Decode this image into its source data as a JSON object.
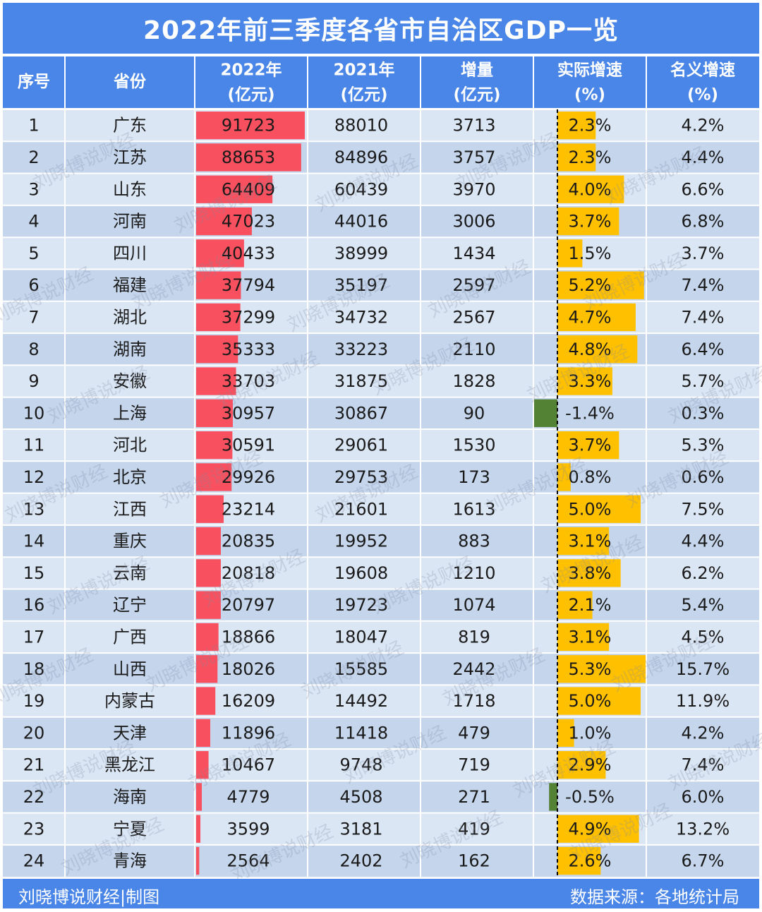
{
  "title": "2022年前三季度各省市自治区GDP一览",
  "footer": {
    "left": "刘晓博说财经|制图",
    "right": "数据来源：各地统计局"
  },
  "watermark": "刘晓博说财经",
  "colors": {
    "header_bg": "#4a86e8",
    "row_even": "#dbe6f4",
    "row_odd": "#c4d5ec",
    "gdp_bar": "#f8505e",
    "growth_pos_bar": "#ffc000",
    "growth_neg_bar": "#548235"
  },
  "chart_data": {
    "type": "table",
    "columns": [
      {
        "key": "rank",
        "label": "序号"
      },
      {
        "key": "province",
        "label": "省份"
      },
      {
        "key": "gdp_2022",
        "label": "2022年",
        "unit": "(亿元)"
      },
      {
        "key": "gdp_2021",
        "label": "2021年",
        "unit": "(亿元)"
      },
      {
        "key": "increase",
        "label": "增量",
        "unit": "(亿元)"
      },
      {
        "key": "real_growth",
        "label": "实际增速",
        "unit": "(%)"
      },
      {
        "key": "nominal_growth",
        "label": "名义增速",
        "unit": "(%)"
      }
    ],
    "rows": [
      {
        "rank": "1",
        "province": "广东",
        "gdp_2022": 91723,
        "gdp_2021": 88010,
        "increase": 3713,
        "real_growth": 2.3,
        "real_growth_label": "2.3%",
        "nominal_growth": "4.2%"
      },
      {
        "rank": "2",
        "province": "江苏",
        "gdp_2022": 88653,
        "gdp_2021": 84896,
        "increase": 3757,
        "real_growth": 2.3,
        "real_growth_label": "2.3%",
        "nominal_growth": "4.4%"
      },
      {
        "rank": "3",
        "province": "山东",
        "gdp_2022": 64409,
        "gdp_2021": 60439,
        "increase": 3970,
        "real_growth": 4.0,
        "real_growth_label": "4.0%",
        "nominal_growth": "6.6%"
      },
      {
        "rank": "4",
        "province": "河南",
        "gdp_2022": 47023,
        "gdp_2021": 44016,
        "increase": 3006,
        "real_growth": 3.7,
        "real_growth_label": "3.7%",
        "nominal_growth": "6.8%"
      },
      {
        "rank": "5",
        "province": "四川",
        "gdp_2022": 40433,
        "gdp_2021": 38999,
        "increase": 1434,
        "real_growth": 1.5,
        "real_growth_label": "1.5%",
        "nominal_growth": "3.7%"
      },
      {
        "rank": "6",
        "province": "福建",
        "gdp_2022": 37794,
        "gdp_2021": 35197,
        "increase": 2597,
        "real_growth": 5.2,
        "real_growth_label": "5.2%",
        "nominal_growth": "7.4%"
      },
      {
        "rank": "7",
        "province": "湖北",
        "gdp_2022": 37299,
        "gdp_2021": 34732,
        "increase": 2567,
        "real_growth": 4.7,
        "real_growth_label": "4.7%",
        "nominal_growth": "7.4%"
      },
      {
        "rank": "8",
        "province": "湖南",
        "gdp_2022": 35333,
        "gdp_2021": 33223,
        "increase": 2110,
        "real_growth": 4.8,
        "real_growth_label": "4.8%",
        "nominal_growth": "6.4%"
      },
      {
        "rank": "9",
        "province": "安徽",
        "gdp_2022": 33703,
        "gdp_2021": 31875,
        "increase": 1828,
        "real_growth": 3.3,
        "real_growth_label": "3.3%",
        "nominal_growth": "5.7%"
      },
      {
        "rank": "10",
        "province": "上海",
        "gdp_2022": 30957,
        "gdp_2021": 30867,
        "increase": 90,
        "real_growth": -1.4,
        "real_growth_label": "-1.4%",
        "nominal_growth": "0.3%"
      },
      {
        "rank": "11",
        "province": "河北",
        "gdp_2022": 30591,
        "gdp_2021": 29061,
        "increase": 1530,
        "real_growth": 3.7,
        "real_growth_label": "3.7%",
        "nominal_growth": "5.3%"
      },
      {
        "rank": "12",
        "province": "北京",
        "gdp_2022": 29926,
        "gdp_2021": 29753,
        "increase": 173,
        "real_growth": 0.8,
        "real_growth_label": "0.8%",
        "nominal_growth": "0.6%"
      },
      {
        "rank": "13",
        "province": "江西",
        "gdp_2022": 23214,
        "gdp_2021": 21601,
        "increase": 1613,
        "real_growth": 5.0,
        "real_growth_label": "5.0%",
        "nominal_growth": "7.5%"
      },
      {
        "rank": "14",
        "province": "重庆",
        "gdp_2022": 20835,
        "gdp_2021": 19952,
        "increase": 883,
        "real_growth": 3.1,
        "real_growth_label": "3.1%",
        "nominal_growth": "4.4%"
      },
      {
        "rank": "15",
        "province": "云南",
        "gdp_2022": 20818,
        "gdp_2021": 19608,
        "increase": 1210,
        "real_growth": 3.8,
        "real_growth_label": "3.8%",
        "nominal_growth": "6.2%"
      },
      {
        "rank": "16",
        "province": "辽宁",
        "gdp_2022": 20797,
        "gdp_2021": 19723,
        "increase": 1074,
        "real_growth": 2.1,
        "real_growth_label": "2.1%",
        "nominal_growth": "5.4%"
      },
      {
        "rank": "17",
        "province": "广西",
        "gdp_2022": 18866,
        "gdp_2021": 18047,
        "increase": 819,
        "real_growth": 3.1,
        "real_growth_label": "3.1%",
        "nominal_growth": "4.5%"
      },
      {
        "rank": "18",
        "province": "山西",
        "gdp_2022": 18026,
        "gdp_2021": 15585,
        "increase": 2442,
        "real_growth": 5.3,
        "real_growth_label": "5.3%",
        "nominal_growth": "15.7%"
      },
      {
        "rank": "19",
        "province": "内蒙古",
        "gdp_2022": 16209,
        "gdp_2021": 14492,
        "increase": 1718,
        "real_growth": 5.0,
        "real_growth_label": "5.0%",
        "nominal_growth": "11.9%"
      },
      {
        "rank": "20",
        "province": "天津",
        "gdp_2022": 11896,
        "gdp_2021": 11418,
        "increase": 479,
        "real_growth": 1.0,
        "real_growth_label": "1.0%",
        "nominal_growth": "4.2%"
      },
      {
        "rank": "21",
        "province": "黑龙江",
        "gdp_2022": 10467,
        "gdp_2021": 9748,
        "increase": 719,
        "real_growth": 2.9,
        "real_growth_label": "2.9%",
        "nominal_growth": "7.4%"
      },
      {
        "rank": "22",
        "province": "海南",
        "gdp_2022": 4779,
        "gdp_2021": 4508,
        "increase": 271,
        "real_growth": -0.5,
        "real_growth_label": "-0.5%",
        "nominal_growth": "6.0%"
      },
      {
        "rank": "23",
        "province": "宁夏",
        "gdp_2022": 3599,
        "gdp_2021": 3181,
        "increase": 419,
        "real_growth": 4.9,
        "real_growth_label": "4.9%",
        "nominal_growth": "13.2%"
      },
      {
        "rank": "24",
        "province": "青海",
        "gdp_2022": 2564,
        "gdp_2021": 2402,
        "increase": 162,
        "real_growth": 2.6,
        "real_growth_label": "2.6%",
        "nominal_growth": "6.7%"
      }
    ]
  }
}
